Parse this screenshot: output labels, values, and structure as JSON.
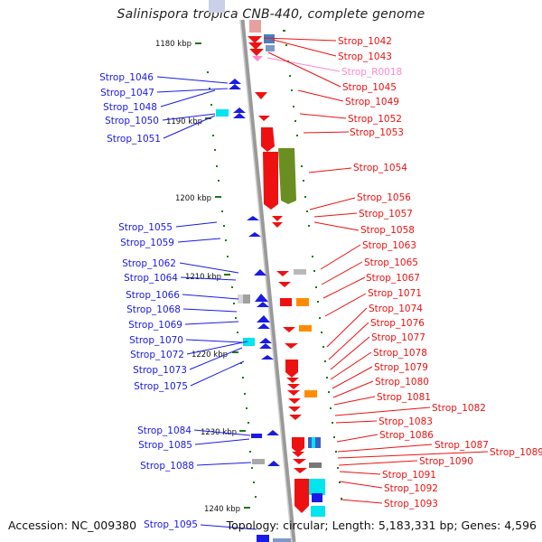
{
  "title": "Salinispora tropica CNB-440, complete genome",
  "footer": {
    "accession": "Accession: NC_009380",
    "topology": "Topology: circular; Length: 5,183,331 bp; Genes: 4,596"
  },
  "colors": {
    "plus_strand": "#0000ee",
    "minus_strand": "#ee0000",
    "rna": "#ff88cc",
    "tick": "#1a7a1a",
    "axis": "#888888"
  },
  "kbp_ticks": [
    "1180 kbp",
    "1190 kbp",
    "1200 kbp",
    "1210 kbp",
    "1220 kbp",
    "1230 kbp",
    "1240 kbp"
  ],
  "left_labels": [
    "Strop_1046",
    "Strop_1047",
    "Strop_1048",
    "Strop_1050",
    "Strop_1051",
    "Strop_1055",
    "Strop_1059",
    "Strop_1062",
    "Strop_1064",
    "Strop_1066",
    "Strop_1068",
    "Strop_1069",
    "Strop_1070",
    "Strop_1072",
    "Strop_1073",
    "Strop_1075",
    "Strop_1084",
    "Strop_1085",
    "Strop_1088",
    "Strop_1095"
  ],
  "right_labels": [
    "Strop_1042",
    "Strop_1043",
    "Strop_R0018",
    "Strop_1045",
    "Strop_1049",
    "Strop_1052",
    "Strop_1053",
    "Strop_1054",
    "Strop_1056",
    "Strop_1057",
    "Strop_1058",
    "Strop_1063",
    "Strop_1065",
    "Strop_1067",
    "Strop_1071",
    "Strop_1074",
    "Strop_1076",
    "Strop_1077",
    "Strop_1078",
    "Strop_1079",
    "Strop_1080",
    "Strop_1081",
    "Strop_1082",
    "Strop_1083",
    "Strop_1086",
    "Strop_1087",
    "Strop_1089",
    "Strop_1090",
    "Strop_1091",
    "Strop_1092",
    "Strop_1093"
  ]
}
